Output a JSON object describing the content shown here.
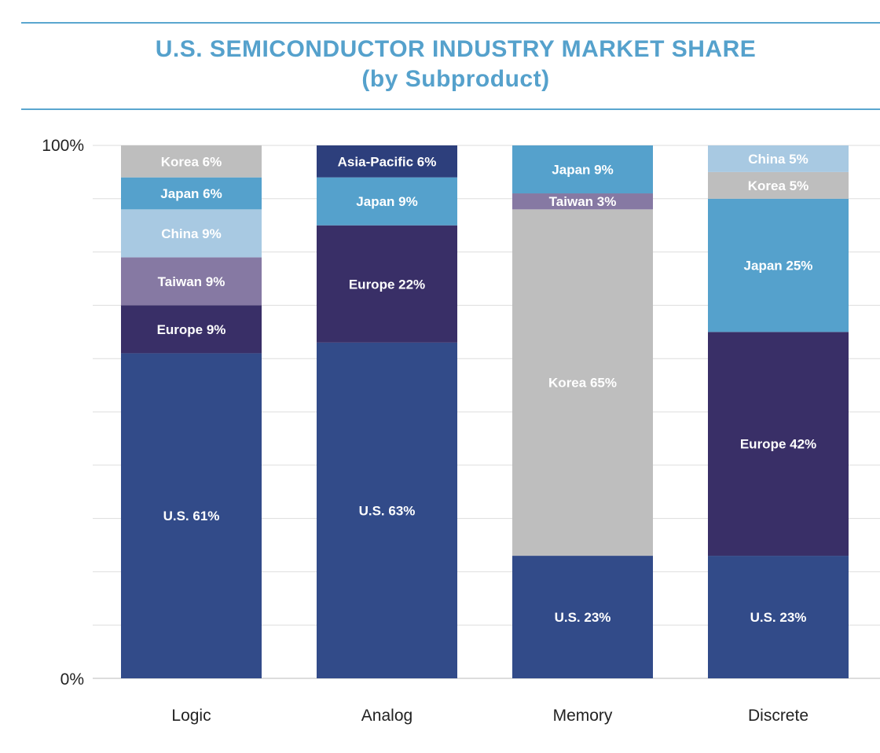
{
  "chart_data": {
    "type": "bar",
    "stacked": true,
    "title": "U.S. SEMICONDUCTOR INDUSTRY MARKET SHARE",
    "subtitle": "(by Subproduct)",
    "ylim": [
      0,
      100
    ],
    "ytick_labels": [
      "100%",
      "0%"
    ],
    "grid": true,
    "categories": [
      "Logic",
      "Analog",
      "Memory",
      "Discrete"
    ],
    "bars": [
      {
        "category": "Logic",
        "segments": [
          {
            "region": "U.S.",
            "value": 61,
            "label": "U.S. 61%",
            "color": "#324b89"
          },
          {
            "region": "Europe",
            "value": 9,
            "label": "Europe 9%",
            "color": "#392f67"
          },
          {
            "region": "Taiwan",
            "value": 9,
            "label": "Taiwan 9%",
            "color": "#8679a3"
          },
          {
            "region": "China",
            "value": 9,
            "label": "China 9%",
            "color": "#a8c9e2"
          },
          {
            "region": "Japan",
            "value": 6,
            "label": "Japan 6%",
            "color": "#55a1cc"
          },
          {
            "region": "Korea",
            "value": 6,
            "label": "Korea 6%",
            "color": "#bebebe"
          }
        ]
      },
      {
        "category": "Analog",
        "segments": [
          {
            "region": "U.S.",
            "value": 63,
            "label": "U.S. 63%",
            "color": "#324b89"
          },
          {
            "region": "Europe",
            "value": 22,
            "label": "Europe 22%",
            "color": "#392f67"
          },
          {
            "region": "Japan",
            "value": 9,
            "label": "Japan 9%",
            "color": "#55a1cc"
          },
          {
            "region": "Asia-Pacific",
            "value": 6,
            "label": "Asia-Pacific 6%",
            "color": "#2d3f7c"
          }
        ]
      },
      {
        "category": "Memory",
        "segments": [
          {
            "region": "U.S.",
            "value": 23,
            "label": "U.S. 23%",
            "color": "#324b89"
          },
          {
            "region": "Korea",
            "value": 65,
            "label": "Korea 65%",
            "color": "#bebebe"
          },
          {
            "region": "Taiwan",
            "value": 3,
            "label": "Taiwan 3%",
            "color": "#8679a3"
          },
          {
            "region": "Japan",
            "value": 9,
            "label": "Japan 9%",
            "color": "#55a1cc"
          }
        ]
      },
      {
        "category": "Discrete",
        "segments": [
          {
            "region": "U.S.",
            "value": 23,
            "label": "U.S. 23%",
            "color": "#324b89"
          },
          {
            "region": "Europe",
            "value": 42,
            "label": "Europe 42%",
            "color": "#392f67"
          },
          {
            "region": "Japan",
            "value": 25,
            "label": "Japan 25%",
            "color": "#55a1cc"
          },
          {
            "region": "Korea",
            "value": 5,
            "label": "Korea 5%",
            "color": "#bebebe"
          },
          {
            "region": "China",
            "value": 5,
            "label": "China 5%",
            "color": "#a8c9e2"
          }
        ]
      }
    ],
    "colors": {
      "title": "#55a1cc",
      "rule": "#5aa6cf",
      "grid": "#dddddd"
    }
  }
}
